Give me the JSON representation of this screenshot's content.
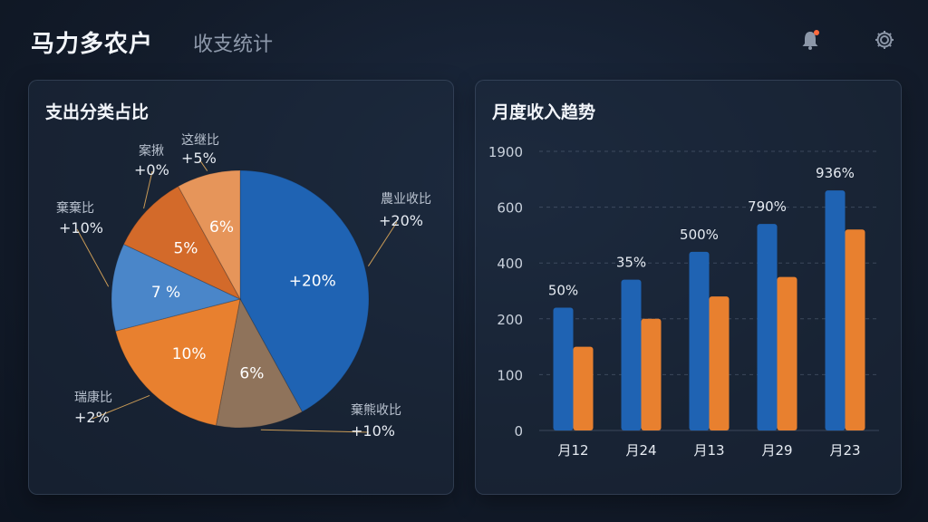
{
  "header": {
    "app_title": "马力多农户",
    "page_subtitle": "收支统计",
    "bell_icon": "bell-icon",
    "settings_icon": "gear-icon",
    "notification_dot_color": "#ff6a3d"
  },
  "colors": {
    "blue": "#1f63b3",
    "orange": "#e8802f",
    "light_blue": "#4a86c9",
    "light_orange": "#e6955a",
    "deep_orange": "#d36a2a",
    "brown": "#8f735b"
  },
  "pie_panel": {
    "title": "支出分类占比"
  },
  "bar_panel": {
    "title": "月度收入趋势"
  },
  "chart_data": [
    {
      "type": "pie",
      "title": "支出分类占比",
      "slices": [
        {
          "inner_label": "+20%",
          "value": 42,
          "color": "#1f63b3",
          "callout_name": "農业收比",
          "callout_value": "+20%"
        },
        {
          "inner_label": "6%",
          "value": 11,
          "color": "#8f735b",
          "callout_name": "棄熊收比",
          "callout_value": "+10%"
        },
        {
          "inner_label": "10%",
          "value": 18,
          "color": "#e8802f",
          "callout_name": "瑞康比",
          "callout_value": "+2%"
        },
        {
          "inner_label": "7 %",
          "value": 11,
          "color": "#4a86c9",
          "callout_name": "棄棄比",
          "callout_value": "+10%"
        },
        {
          "inner_label": "5%",
          "value": 10,
          "color": "#d36a2a",
          "callout_name": "案揪",
          "callout_value": "+0%"
        },
        {
          "inner_label": "6%",
          "value": 8,
          "color": "#e6955a",
          "callout_name": "这继比",
          "callout_value": "+5%"
        }
      ]
    },
    {
      "type": "bar",
      "title": "月度收入趋势",
      "categories": [
        "月12",
        "月24",
        "月13",
        "月29",
        "月23"
      ],
      "yticks": [
        "0",
        "100",
        "200",
        "400",
        "600",
        "1900"
      ],
      "series": [
        {
          "values": [
            220,
            270,
            320,
            370,
            430
          ],
          "color": "#1f63b3",
          "labels": [
            "50%",
            "35%",
            "500%",
            "790%",
            "936%"
          ]
        },
        {
          "values": [
            150,
            200,
            240,
            275,
            360
          ],
          "color": "#e8802f"
        }
      ]
    }
  ]
}
